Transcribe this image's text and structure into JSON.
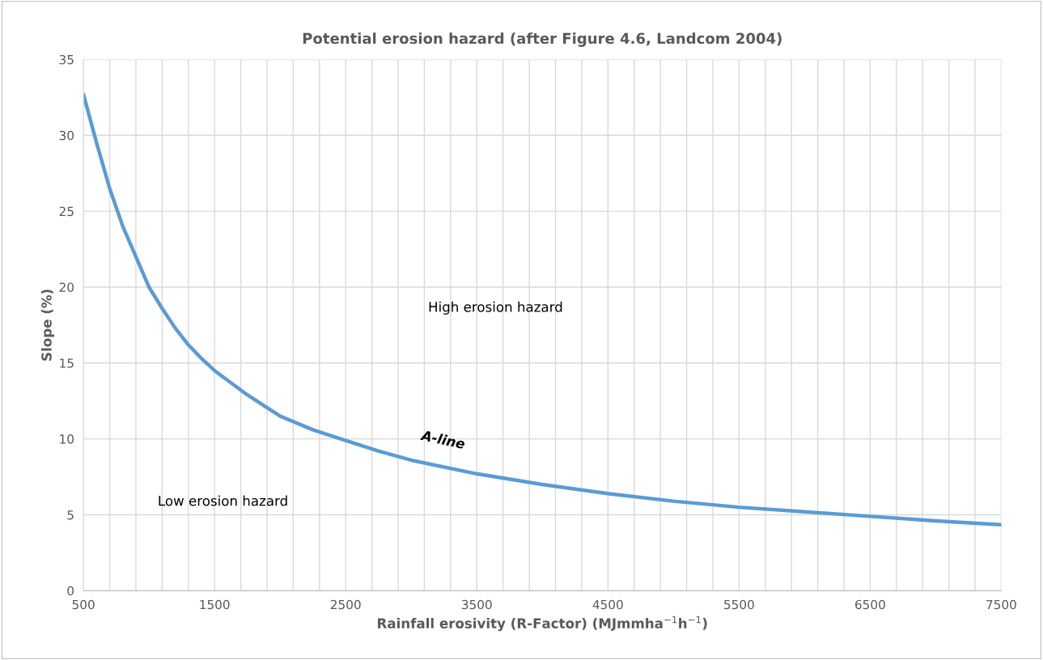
{
  "chart_data": {
    "type": "line",
    "title": "Potential erosion hazard (after Figure 4.6, Landcom 2004)",
    "xlabel": "Rainfall erosivity (R-Factor) (MJmmha$^{−1}$h$^{−1}$)",
    "ylabel": "Slope (%)",
    "x": [
      500,
      600,
      700,
      800,
      900,
      1000,
      1100,
      1200,
      1300,
      1400,
      1500,
      1750,
      2000,
      2250,
      2500,
      2750,
      3000,
      3500,
      4000,
      4500,
      5000,
      5500,
      6000,
      6500,
      7000,
      7500
    ],
    "series": [
      {
        "name": "A-line",
        "color": "#5b9bd5",
        "values": [
          32.7,
          29.5,
          26.5,
          24.0,
          22.0,
          20.0,
          18.6,
          17.3,
          16.2,
          15.3,
          14.5,
          12.9,
          11.5,
          10.6,
          9.9,
          9.2,
          8.6,
          7.7,
          7.0,
          6.4,
          5.9,
          5.5,
          5.2,
          4.9,
          4.6,
          4.35
        ]
      }
    ],
    "xlim": [
      500,
      7500
    ],
    "ylim": [
      0,
      35
    ],
    "xticks": [
      500,
      {
        "value": 700,
        "label": null
      },
      {
        "value": 900,
        "label": null
      },
      {
        "value": 1100,
        "label": null
      },
      {
        "value": 1300,
        "label": null
      },
      1500,
      {
        "value": 1700,
        "label": null
      },
      {
        "value": 1900,
        "label": null
      },
      {
        "value": 2100,
        "label": null
      },
      {
        "value": 2300,
        "label": null
      },
      2500,
      {
        "value": 2700,
        "label": null
      },
      {
        "value": 2900,
        "label": null
      },
      {
        "value": 3100,
        "label": null
      },
      {
        "value": 3300,
        "label": null
      },
      3500,
      {
        "value": 3700,
        "label": null
      },
      {
        "value": 3900,
        "label": null
      },
      {
        "value": 4100,
        "label": null
      },
      {
        "value": 4300,
        "label": null
      },
      4500,
      {
        "value": 4700,
        "label": null
      },
      {
        "value": 4900,
        "label": null
      },
      {
        "value": 5100,
        "label": null
      },
      {
        "value": 5300,
        "label": null
      },
      5500,
      {
        "value": 5700,
        "label": null
      },
      {
        "value": 5900,
        "label": null
      },
      {
        "value": 6100,
        "label": null
      },
      {
        "value": 6300,
        "label": null
      },
      6500,
      {
        "value": 6700,
        "label": null
      },
      {
        "value": 6900,
        "label": null
      },
      {
        "value": 7100,
        "label": null
      },
      {
        "value": 7300,
        "label": null
      },
      7500
    ],
    "yticks": [
      0,
      5,
      10,
      15,
      20,
      25,
      30,
      35
    ],
    "grid": true,
    "marker": "none",
    "line_style": "solid",
    "annotations": [
      "High erosion hazard",
      "Low erosion hazard"
    ]
  }
}
